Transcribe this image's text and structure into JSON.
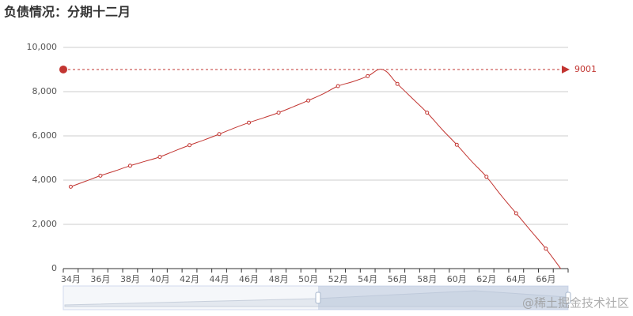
{
  "chart_data": {
    "type": "line",
    "title": "负债情况：分期十二月",
    "categories": [
      "34月",
      null,
      "36月",
      null,
      "38月",
      null,
      "40月",
      null,
      "42月",
      null,
      "44月",
      null,
      "46月",
      null,
      "48月",
      null,
      "50月",
      null,
      "52月",
      null,
      "54月",
      null,
      "56月",
      null,
      "58月",
      null,
      "60月",
      null,
      "62月",
      null,
      "64月",
      null,
      "66月",
      null
    ],
    "values": [
      3700,
      3950,
      4200,
      4420,
      4650,
      4850,
      5050,
      5320,
      5580,
      5820,
      6080,
      6350,
      6600,
      6820,
      7050,
      7320,
      7600,
      7900,
      8250,
      8450,
      8700,
      9001,
      8350,
      7700,
      7050,
      6300,
      5600,
      4850,
      4150,
      3300,
      2500,
      1700,
      900,
      0
    ],
    "color": "#c23531",
    "ylim": [
      0,
      10000
    ],
    "yticks": [
      0,
      {
        "value": 2000,
        "label": "2,000"
      },
      {
        "value": 4000,
        "label": "4,000"
      },
      {
        "value": 6000,
        "label": "6,000"
      },
      {
        "value": 8000,
        "label": "8,000"
      },
      {
        "value": 10000,
        "label": "10,000"
      }
    ],
    "grid": true,
    "watermark": "@稀土掘金技术社区"
  }
}
